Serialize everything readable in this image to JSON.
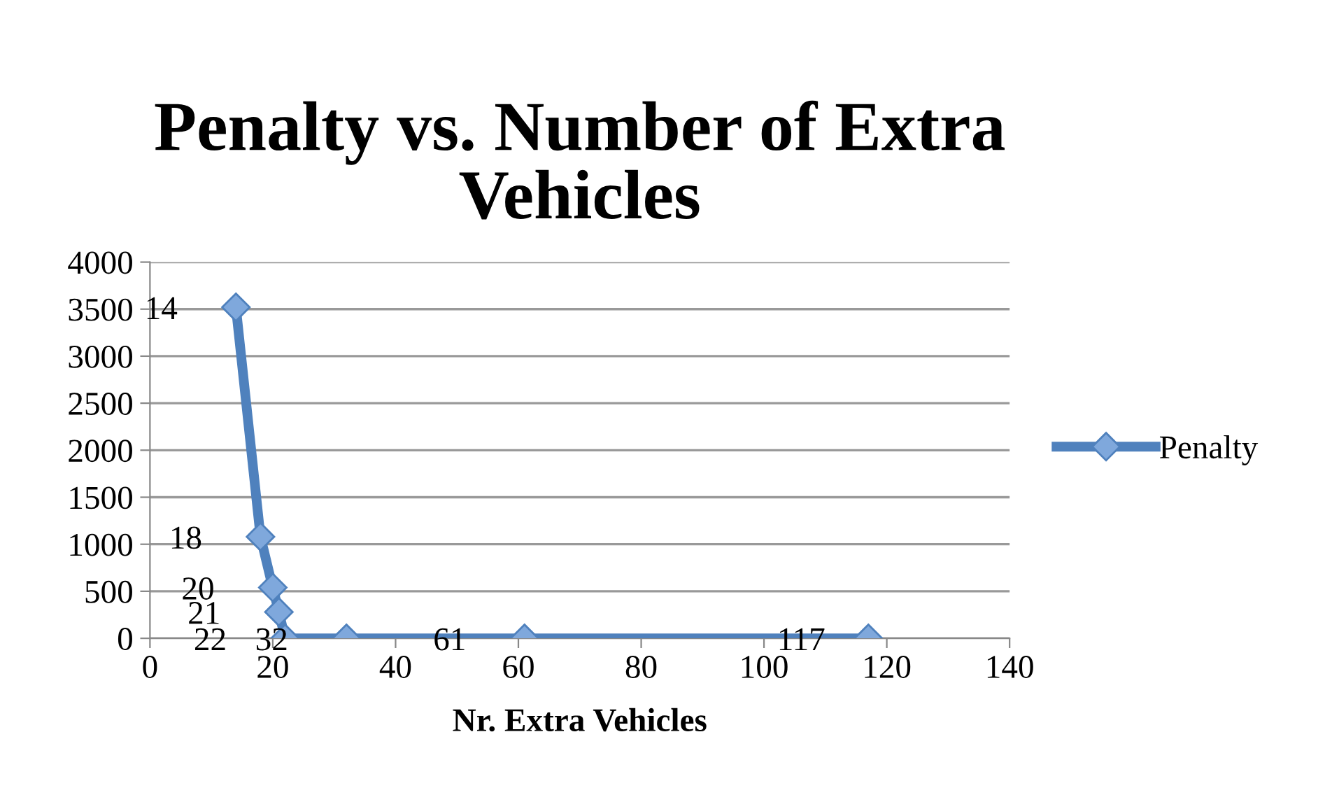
{
  "chart_data": {
    "type": "line",
    "title": "Penalty vs. Number of Extra\nVehicles",
    "xlabel": "Nr. Extra Vehicles",
    "x": [
      14,
      18,
      20,
      21,
      22,
      32,
      61,
      117
    ],
    "series": [
      {
        "name": "Penalty",
        "color": "#4f81bd",
        "values": [
          3520,
          1080,
          540,
          280,
          0,
          0,
          0,
          0
        ]
      }
    ],
    "annotations": [
      {
        "text": "14",
        "x": 14,
        "y": 3520
      },
      {
        "text": "18",
        "x": 18,
        "y": 1080
      },
      {
        "text": "20",
        "x": 20,
        "y": 540
      },
      {
        "text": "21",
        "x": 21,
        "y": 280
      },
      {
        "text": "22",
        "x": 22,
        "y": 0
      },
      {
        "text": "32",
        "x": 32,
        "y": 0
      },
      {
        "text": "61",
        "x": 61,
        "y": 0
      },
      {
        "text": "117",
        "x": 117,
        "y": 0
      }
    ],
    "xlim": [
      0,
      140
    ],
    "xticks": [
      0,
      20,
      40,
      60,
      80,
      100,
      120,
      140
    ],
    "ylim": [
      0,
      4000
    ],
    "yticks": [
      0,
      500,
      1000,
      1500,
      2000,
      2500,
      3000,
      3500,
      4000
    ],
    "grid": "y",
    "legend": "right",
    "marker": "diamond",
    "line_style": "solid"
  }
}
